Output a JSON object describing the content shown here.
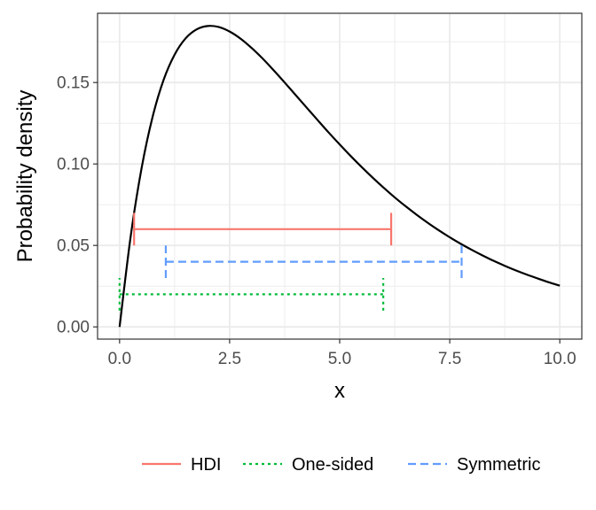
{
  "chart_data": {
    "type": "line",
    "xlabel": "x",
    "ylabel": "Probability density",
    "xlim": [
      -0.5,
      10.5
    ],
    "ylim": [
      -0.0075,
      0.1925
    ],
    "x_ticks": [
      0.0,
      2.5,
      5.0,
      7.5,
      10.0
    ],
    "x_tick_labels": [
      "0.0",
      "2.5",
      "5.0",
      "7.5",
      "10.0"
    ],
    "y_ticks": [
      0.0,
      0.05,
      0.1,
      0.15
    ],
    "y_tick_labels": [
      "0.00",
      "0.05",
      "0.10",
      "0.15"
    ],
    "grid": true,
    "legend_position": "bottom",
    "density_curve": {
      "color": "#000000",
      "x": [
        0,
        0.25,
        0.5,
        0.75,
        1,
        1.25,
        1.5,
        1.75,
        2,
        2.25,
        2.5,
        2.75,
        3,
        3.25,
        3.5,
        3.75,
        4,
        4.25,
        4.5,
        4.75,
        5,
        5.25,
        5.5,
        5.75,
        6,
        6.25,
        6.5,
        6.75,
        7,
        7.25,
        7.5,
        7.75,
        8,
        8.25,
        8.5,
        8.75,
        9,
        9.25,
        9.5,
        9.75,
        10
      ],
      "y": [
        0,
        0.0551,
        0.0974,
        0.1289,
        0.1516,
        0.1671,
        0.1771,
        0.1826,
        0.1847,
        0.1841,
        0.1813,
        0.1769,
        0.1712,
        0.1647,
        0.1575,
        0.15,
        0.1423,
        0.1346,
        0.1269,
        0.1193,
        0.112,
        0.1049,
        0.0981,
        0.0916,
        0.0854,
        0.0795,
        0.074,
        0.0688,
        0.0639,
        0.0593,
        0.055,
        0.051,
        0.0473,
        0.0438,
        0.0405,
        0.0375,
        0.0347,
        0.0321,
        0.0297,
        0.0274,
        0.0253
      ]
    },
    "series": [
      {
        "name": "HDI",
        "color": "#F8766D",
        "dash": "solid",
        "x_start": 0.33,
        "x_end": 6.17,
        "y": 0.06
      },
      {
        "name": "One-sided",
        "color": "#00BA38",
        "dash": "dotted",
        "x_start": 0.0,
        "x_end": 5.99,
        "y": 0.02
      },
      {
        "name": "Symmetric",
        "color": "#619CFF",
        "dash": "dashed",
        "x_start": 1.05,
        "x_end": 7.77,
        "y": 0.04
      }
    ]
  }
}
